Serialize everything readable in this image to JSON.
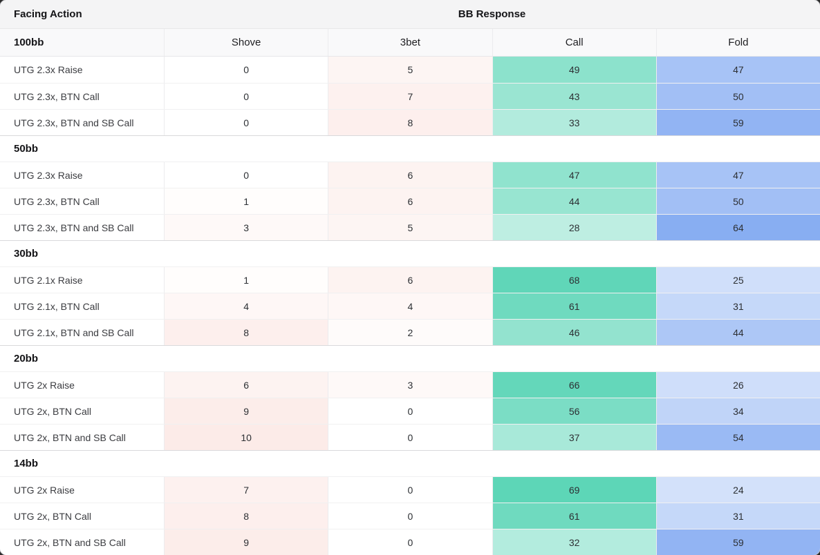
{
  "title_bar": {
    "facing_action": "Facing Action",
    "bb_response": "BB Response"
  },
  "columns": [
    "Shove",
    "3bet",
    "Call",
    "Fold"
  ],
  "heatmap_base_colors": {
    "shove": "#e13719",
    "threebet": "#e13719",
    "call": "#14c397",
    "fold": "#4580eb"
  },
  "sections": [
    {
      "label": "100bb",
      "rows": [
        {
          "label": "UTG 2.3x Raise",
          "values": [
            0,
            5,
            49,
            47
          ]
        },
        {
          "label": "UTG 2.3x, BTN Call",
          "values": [
            0,
            7,
            43,
            50
          ]
        },
        {
          "label": "UTG 2.3x, BTN and SB Call",
          "values": [
            0,
            8,
            33,
            59
          ]
        }
      ]
    },
    {
      "label": "50bb",
      "rows": [
        {
          "label": "UTG 2.3x Raise",
          "values": [
            0,
            6,
            47,
            47
          ]
        },
        {
          "label": "UTG 2.3x, BTN Call",
          "values": [
            1,
            6,
            44,
            50
          ]
        },
        {
          "label": "UTG 2.3x, BTN and SB Call",
          "values": [
            3,
            5,
            28,
            64
          ]
        }
      ]
    },
    {
      "label": "30bb",
      "rows": [
        {
          "label": "UTG 2.1x Raise",
          "values": [
            1,
            6,
            68,
            25
          ]
        },
        {
          "label": "UTG 2.1x, BTN Call",
          "values": [
            4,
            4,
            61,
            31
          ]
        },
        {
          "label": "UTG 2.1x, BTN and SB Call",
          "values": [
            8,
            2,
            46,
            44
          ]
        }
      ]
    },
    {
      "label": "20bb",
      "rows": [
        {
          "label": "UTG 2x Raise",
          "values": [
            6,
            3,
            66,
            26
          ]
        },
        {
          "label": "UTG 2x, BTN Call",
          "values": [
            9,
            0,
            56,
            34
          ]
        },
        {
          "label": "UTG 2x, BTN and SB Call",
          "values": [
            10,
            0,
            37,
            54
          ]
        }
      ]
    },
    {
      "label": "14bb",
      "rows": [
        {
          "label": "UTG 2x Raise",
          "values": [
            7,
            0,
            69,
            24
          ]
        },
        {
          "label": "UTG 2x, BTN Call",
          "values": [
            8,
            0,
            61,
            31
          ]
        },
        {
          "label": "UTG 2x, BTN and SB Call",
          "values": [
            9,
            0,
            32,
            59
          ]
        }
      ]
    }
  ]
}
